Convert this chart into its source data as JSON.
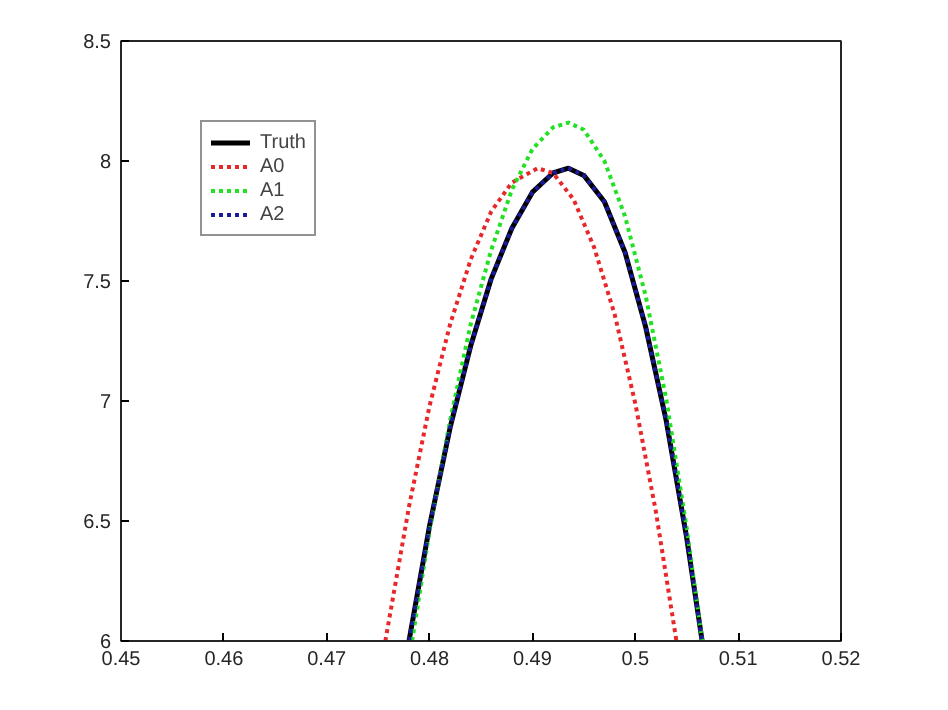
{
  "chart_data": {
    "type": "line",
    "xlim": [
      0.45,
      0.52
    ],
    "ylim": [
      6,
      8.5
    ],
    "xticks": [
      0.45,
      0.46,
      0.47,
      0.48,
      0.49,
      0.5,
      0.51,
      0.52
    ],
    "yticks": [
      6,
      6.5,
      7,
      7.5,
      8,
      8.5
    ],
    "grid": false,
    "legend": "top left",
    "line_style": "dotted",
    "marker": "none",
    "series": [
      {
        "name": "Truth",
        "color": "#000000",
        "line_style": "solid",
        "x": [
          0.478,
          0.48,
          0.482,
          0.484,
          0.486,
          0.488,
          0.49,
          0.492,
          0.4935,
          0.495,
          0.497,
          0.499,
          0.501,
          0.503,
          0.505,
          0.5065
        ],
        "values": [
          6,
          6.48,
          6.89,
          7.23,
          7.51,
          7.72,
          7.87,
          7.95,
          7.97,
          7.94,
          7.83,
          7.62,
          7.31,
          6.92,
          6.43,
          6.0
        ]
      },
      {
        "name": "A0",
        "color": "#e8272a",
        "x": [
          0.4757,
          0.478,
          0.48,
          0.482,
          0.484,
          0.486,
          0.488,
          0.4905,
          0.492,
          0.494,
          0.496,
          0.498,
          0.5,
          0.502,
          0.504
        ],
        "values": [
          6,
          6.56,
          6.98,
          7.32,
          7.59,
          7.79,
          7.91,
          7.97,
          7.95,
          7.84,
          7.64,
          7.36,
          6.99,
          6.54,
          6.0
        ]
      },
      {
        "name": "A1",
        "color": "#22e022",
        "x": [
          0.4783,
          0.48,
          0.482,
          0.484,
          0.486,
          0.488,
          0.49,
          0.492,
          0.4935,
          0.495,
          0.497,
          0.499,
          0.501,
          0.503,
          0.505,
          0.5065
        ],
        "values": [
          6,
          6.46,
          6.92,
          7.32,
          7.63,
          7.88,
          8.05,
          8.14,
          8.16,
          8.13,
          8.0,
          7.77,
          7.44,
          7.01,
          6.47,
          6.0
        ]
      },
      {
        "name": "A2",
        "color": "#1a1a9a",
        "x": [
          0.478,
          0.48,
          0.482,
          0.484,
          0.486,
          0.488,
          0.49,
          0.492,
          0.4935,
          0.495,
          0.497,
          0.499,
          0.501,
          0.503,
          0.505,
          0.5065
        ],
        "values": [
          6,
          6.48,
          6.89,
          7.23,
          7.51,
          7.72,
          7.87,
          7.95,
          7.97,
          7.94,
          7.83,
          7.62,
          7.31,
          6.92,
          6.43,
          6.0
        ]
      }
    ]
  }
}
